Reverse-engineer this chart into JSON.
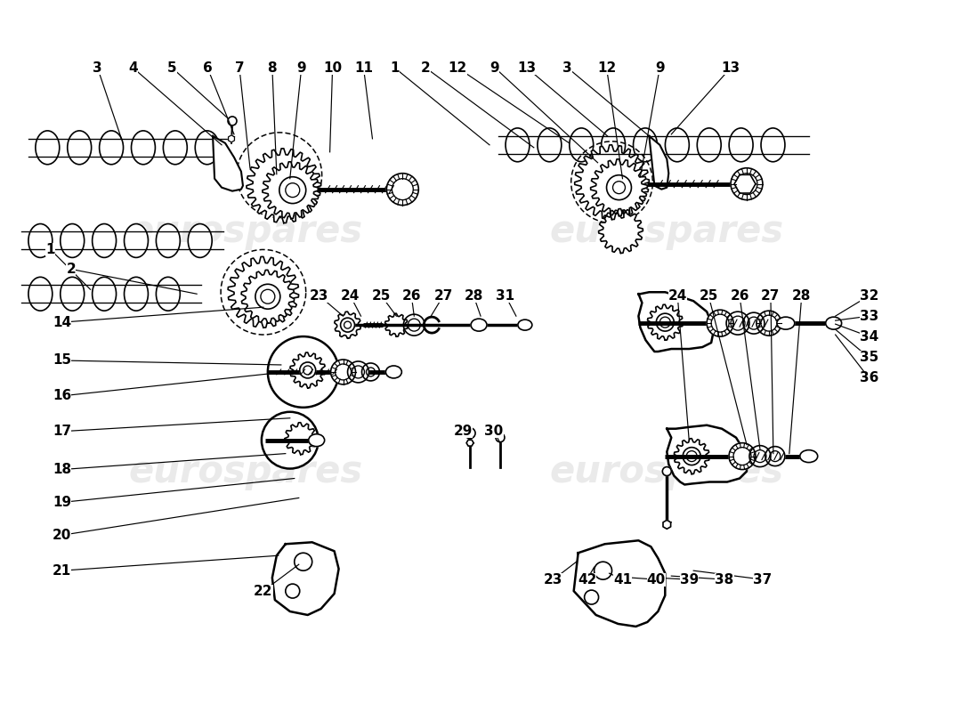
{
  "bg_color": "#ffffff",
  "line_color": "#000000",
  "watermark_color": "#cccccc",
  "watermark_text": "eurospares",
  "figsize": [
    11.0,
    8.0
  ],
  "dpi": 100,
  "top_labels": [
    [
      "3",
      105,
      718
    ],
    [
      "4",
      148,
      718
    ],
    [
      "5",
      192,
      718
    ],
    [
      "6",
      232,
      718
    ],
    [
      "7",
      270,
      718
    ],
    [
      "8",
      305,
      718
    ],
    [
      "9",
      338,
      718
    ],
    [
      "10",
      373,
      718
    ],
    [
      "11",
      408,
      718
    ],
    [
      "1",
      443,
      718
    ],
    [
      "2",
      478,
      718
    ],
    [
      "12",
      514,
      718
    ],
    [
      "9",
      556,
      718
    ],
    [
      "13",
      592,
      718
    ],
    [
      "3",
      638,
      718
    ],
    [
      "12",
      682,
      718
    ],
    [
      "9",
      742,
      718
    ],
    [
      "13",
      822,
      718
    ]
  ],
  "left_labels": [
    [
      "1",
      55,
      520
    ],
    [
      "2",
      78,
      498
    ],
    [
      "14",
      68,
      438
    ],
    [
      "15",
      68,
      395
    ],
    [
      "16",
      68,
      355
    ],
    [
      "17",
      68,
      315
    ],
    [
      "18",
      68,
      272
    ],
    [
      "19",
      68,
      235
    ],
    [
      "20",
      68,
      198
    ],
    [
      "21",
      68,
      158
    ],
    [
      "22",
      295,
      138
    ]
  ],
  "mid_labels": [
    [
      "23",
      358,
      472
    ],
    [
      "24",
      393,
      472
    ],
    [
      "25",
      428,
      472
    ],
    [
      "26",
      462,
      472
    ],
    [
      "27",
      498,
      472
    ],
    [
      "28",
      532,
      472
    ],
    [
      "31",
      568,
      472
    ],
    [
      "29",
      520,
      318
    ],
    [
      "30",
      555,
      318
    ]
  ],
  "right_top_labels": [
    [
      "32",
      975,
      472
    ],
    [
      "33",
      975,
      445
    ],
    [
      "34",
      975,
      418
    ],
    [
      "35",
      975,
      390
    ],
    [
      "36",
      975,
      362
    ]
  ],
  "right_mid_labels": [
    [
      "24",
      762,
      472
    ],
    [
      "25",
      797,
      472
    ],
    [
      "26",
      832,
      472
    ],
    [
      "27",
      867,
      472
    ],
    [
      "28",
      902,
      472
    ]
  ],
  "right_bot_labels": [
    [
      "23",
      622,
      148
    ],
    [
      "42",
      660,
      148
    ],
    [
      "41",
      700,
      148
    ],
    [
      "40",
      738,
      148
    ],
    [
      "39",
      775,
      148
    ],
    [
      "38",
      815,
      148
    ],
    [
      "37",
      858,
      148
    ]
  ]
}
